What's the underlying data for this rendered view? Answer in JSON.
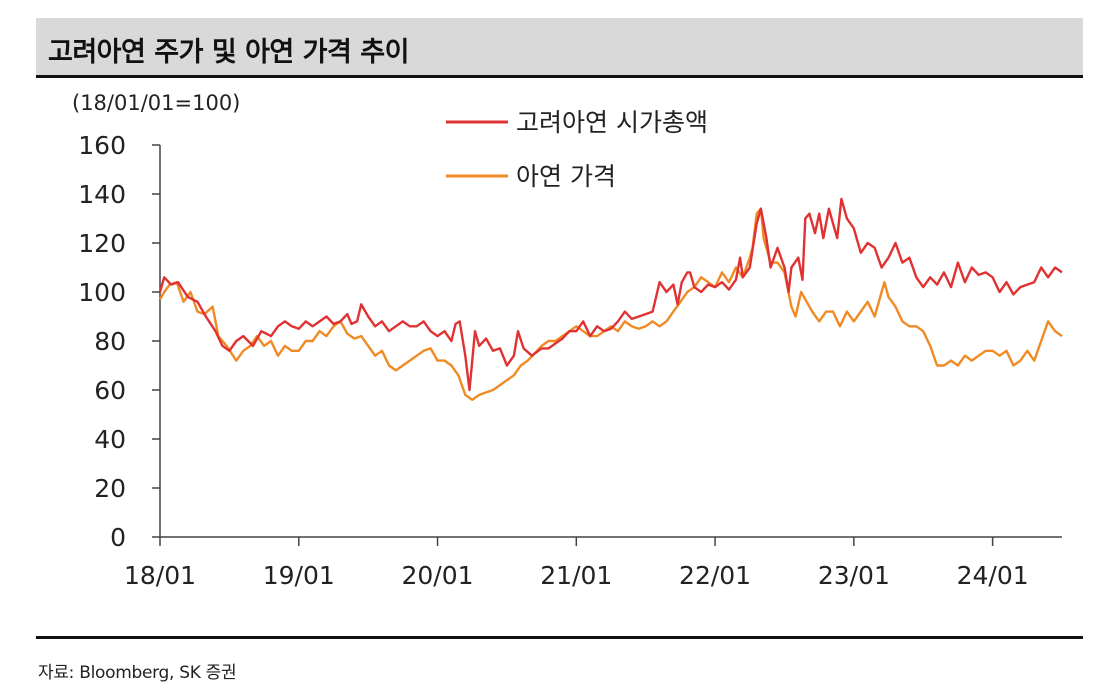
{
  "header": {
    "title": "고려아연 주가 및 아연 가격 추이"
  },
  "footer": {
    "source": "자료: Bloomberg, SK 증권"
  },
  "chart_data": {
    "type": "line",
    "unit_note": "(18/01/01=100)",
    "ylim": [
      0,
      160
    ],
    "yticks": [
      "0",
      "20",
      "40",
      "60",
      "80",
      "100",
      "120",
      "140",
      "160"
    ],
    "xlim": [
      0,
      6.5
    ],
    "xticks": [
      "18/01",
      "19/01",
      "20/01",
      "21/01",
      "22/01",
      "23/01",
      "24/01"
    ],
    "grid": false,
    "legend_position": "top-center",
    "colors": {
      "market_cap": "#e03232",
      "zinc": "#f08a24"
    },
    "series": [
      {
        "name": "고려아연 시가총액",
        "color": "#e03232",
        "points": [
          [
            0.0,
            100
          ],
          [
            0.03,
            106
          ],
          [
            0.08,
            103
          ],
          [
            0.13,
            104
          ],
          [
            0.2,
            98
          ],
          [
            0.27,
            96
          ],
          [
            0.33,
            90
          ],
          [
            0.4,
            84
          ],
          [
            0.45,
            78
          ],
          [
            0.5,
            76
          ],
          [
            0.55,
            80
          ],
          [
            0.6,
            82
          ],
          [
            0.67,
            78
          ],
          [
            0.73,
            84
          ],
          [
            0.8,
            82
          ],
          [
            0.85,
            86
          ],
          [
            0.9,
            88
          ],
          [
            0.95,
            86
          ],
          [
            1.0,
            85
          ],
          [
            1.05,
            88
          ],
          [
            1.1,
            86
          ],
          [
            1.15,
            88
          ],
          [
            1.2,
            90
          ],
          [
            1.25,
            87
          ],
          [
            1.3,
            88
          ],
          [
            1.35,
            91
          ],
          [
            1.38,
            87
          ],
          [
            1.42,
            88
          ],
          [
            1.45,
            95
          ],
          [
            1.5,
            90
          ],
          [
            1.55,
            86
          ],
          [
            1.6,
            88
          ],
          [
            1.65,
            84
          ],
          [
            1.7,
            86
          ],
          [
            1.75,
            88
          ],
          [
            1.8,
            86
          ],
          [
            1.85,
            86
          ],
          [
            1.9,
            88
          ],
          [
            1.95,
            84
          ],
          [
            2.0,
            82
          ],
          [
            2.05,
            84
          ],
          [
            2.1,
            80
          ],
          [
            2.13,
            87
          ],
          [
            2.16,
            88
          ],
          [
            2.2,
            74
          ],
          [
            2.23,
            60
          ],
          [
            2.27,
            84
          ],
          [
            2.3,
            78
          ],
          [
            2.35,
            81
          ],
          [
            2.4,
            76
          ],
          [
            2.45,
            77
          ],
          [
            2.5,
            70
          ],
          [
            2.55,
            74
          ],
          [
            2.58,
            84
          ],
          [
            2.62,
            77
          ],
          [
            2.68,
            74
          ],
          [
            2.75,
            77
          ],
          [
            2.8,
            77
          ],
          [
            2.85,
            79
          ],
          [
            2.9,
            81
          ],
          [
            2.95,
            84
          ],
          [
            3.0,
            84
          ],
          [
            3.05,
            88
          ],
          [
            3.1,
            82
          ],
          [
            3.15,
            86
          ],
          [
            3.2,
            84
          ],
          [
            3.25,
            85
          ],
          [
            3.3,
            88
          ],
          [
            3.35,
            92
          ],
          [
            3.4,
            89
          ],
          [
            3.45,
            90
          ],
          [
            3.5,
            91
          ],
          [
            3.55,
            92
          ],
          [
            3.6,
            104
          ],
          [
            3.65,
            100
          ],
          [
            3.7,
            103
          ],
          [
            3.73,
            95
          ],
          [
            3.76,
            104
          ],
          [
            3.8,
            108
          ],
          [
            3.82,
            108
          ],
          [
            3.85,
            102
          ],
          [
            3.9,
            100
          ],
          [
            3.95,
            103
          ],
          [
            4.0,
            102
          ],
          [
            4.05,
            104
          ],
          [
            4.1,
            101
          ],
          [
            4.15,
            105
          ],
          [
            4.18,
            114
          ],
          [
            4.2,
            106
          ],
          [
            4.25,
            110
          ],
          [
            4.3,
            128
          ],
          [
            4.33,
            134
          ],
          [
            4.37,
            122
          ],
          [
            4.4,
            110
          ],
          [
            4.45,
            118
          ],
          [
            4.5,
            110
          ],
          [
            4.53,
            100
          ],
          [
            4.55,
            110
          ],
          [
            4.6,
            114
          ],
          [
            4.63,
            105
          ],
          [
            4.65,
            130
          ],
          [
            4.68,
            132
          ],
          [
            4.72,
            124
          ],
          [
            4.75,
            132
          ],
          [
            4.78,
            122
          ],
          [
            4.82,
            134
          ],
          [
            4.85,
            128
          ],
          [
            4.88,
            122
          ],
          [
            4.91,
            138
          ],
          [
            4.95,
            130
          ],
          [
            5.0,
            126
          ],
          [
            5.05,
            116
          ],
          [
            5.1,
            120
          ],
          [
            5.15,
            118
          ],
          [
            5.2,
            110
          ],
          [
            5.25,
            114
          ],
          [
            5.3,
            120
          ],
          [
            5.35,
            112
          ],
          [
            5.4,
            114
          ],
          [
            5.45,
            106
          ],
          [
            5.5,
            102
          ],
          [
            5.55,
            106
          ],
          [
            5.6,
            103
          ],
          [
            5.65,
            108
          ],
          [
            5.7,
            102
          ],
          [
            5.75,
            112
          ],
          [
            5.8,
            104
          ],
          [
            5.85,
            110
          ],
          [
            5.9,
            107
          ],
          [
            5.95,
            108
          ],
          [
            6.0,
            106
          ],
          [
            6.05,
            100
          ],
          [
            6.1,
            104
          ],
          [
            6.15,
            99
          ],
          [
            6.2,
            102
          ],
          [
            6.25,
            103
          ],
          [
            6.3,
            104
          ],
          [
            6.35,
            110
          ],
          [
            6.4,
            106
          ],
          [
            6.45,
            110
          ],
          [
            6.5,
            108
          ]
        ]
      },
      {
        "name": "아연 가격",
        "color": "#f08a24",
        "points": [
          [
            0.0,
            97
          ],
          [
            0.03,
            100
          ],
          [
            0.07,
            103
          ],
          [
            0.12,
            104
          ],
          [
            0.17,
            96
          ],
          [
            0.22,
            100
          ],
          [
            0.27,
            92
          ],
          [
            0.32,
            91
          ],
          [
            0.38,
            94
          ],
          [
            0.42,
            82
          ],
          [
            0.48,
            78
          ],
          [
            0.55,
            72
          ],
          [
            0.6,
            76
          ],
          [
            0.65,
            78
          ],
          [
            0.7,
            82
          ],
          [
            0.75,
            78
          ],
          [
            0.8,
            80
          ],
          [
            0.85,
            74
          ],
          [
            0.9,
            78
          ],
          [
            0.95,
            76
          ],
          [
            1.0,
            76
          ],
          [
            1.05,
            80
          ],
          [
            1.1,
            80
          ],
          [
            1.15,
            84
          ],
          [
            1.2,
            82
          ],
          [
            1.25,
            86
          ],
          [
            1.3,
            88
          ],
          [
            1.35,
            83
          ],
          [
            1.4,
            81
          ],
          [
            1.45,
            82
          ],
          [
            1.5,
            78
          ],
          [
            1.55,
            74
          ],
          [
            1.6,
            76
          ],
          [
            1.65,
            70
          ],
          [
            1.7,
            68
          ],
          [
            1.75,
            70
          ],
          [
            1.8,
            72
          ],
          [
            1.85,
            74
          ],
          [
            1.9,
            76
          ],
          [
            1.95,
            77
          ],
          [
            2.0,
            72
          ],
          [
            2.05,
            72
          ],
          [
            2.1,
            70
          ],
          [
            2.15,
            66
          ],
          [
            2.2,
            58
          ],
          [
            2.25,
            56
          ],
          [
            2.3,
            58
          ],
          [
            2.35,
            59
          ],
          [
            2.4,
            60
          ],
          [
            2.45,
            62
          ],
          [
            2.5,
            64
          ],
          [
            2.55,
            66
          ],
          [
            2.6,
            70
          ],
          [
            2.65,
            72
          ],
          [
            2.7,
            75
          ],
          [
            2.75,
            78
          ],
          [
            2.8,
            80
          ],
          [
            2.85,
            80
          ],
          [
            2.9,
            82
          ],
          [
            2.95,
            84
          ],
          [
            3.0,
            86
          ],
          [
            3.05,
            84
          ],
          [
            3.1,
            82
          ],
          [
            3.15,
            82
          ],
          [
            3.2,
            84
          ],
          [
            3.25,
            86
          ],
          [
            3.3,
            84
          ],
          [
            3.35,
            88
          ],
          [
            3.4,
            86
          ],
          [
            3.45,
            85
          ],
          [
            3.5,
            86
          ],
          [
            3.55,
            88
          ],
          [
            3.6,
            86
          ],
          [
            3.65,
            88
          ],
          [
            3.7,
            92
          ],
          [
            3.75,
            96
          ],
          [
            3.8,
            100
          ],
          [
            3.85,
            102
          ],
          [
            3.9,
            106
          ],
          [
            3.95,
            104
          ],
          [
            4.0,
            102
          ],
          [
            4.05,
            108
          ],
          [
            4.1,
            104
          ],
          [
            4.15,
            110
          ],
          [
            4.2,
            106
          ],
          [
            4.25,
            114
          ],
          [
            4.27,
            118
          ],
          [
            4.3,
            132
          ],
          [
            4.33,
            134
          ],
          [
            4.35,
            122
          ],
          [
            4.4,
            112
          ],
          [
            4.45,
            112
          ],
          [
            4.5,
            108
          ],
          [
            4.55,
            94
          ],
          [
            4.58,
            90
          ],
          [
            4.62,
            100
          ],
          [
            4.66,
            96
          ],
          [
            4.7,
            92
          ],
          [
            4.75,
            88
          ],
          [
            4.8,
            92
          ],
          [
            4.85,
            92
          ],
          [
            4.9,
            86
          ],
          [
            4.95,
            92
          ],
          [
            5.0,
            88
          ],
          [
            5.05,
            92
          ],
          [
            5.1,
            96
          ],
          [
            5.15,
            90
          ],
          [
            5.2,
            100
          ],
          [
            5.22,
            104
          ],
          [
            5.25,
            98
          ],
          [
            5.3,
            94
          ],
          [
            5.35,
            88
          ],
          [
            5.4,
            86
          ],
          [
            5.45,
            86
          ],
          [
            5.5,
            84
          ],
          [
            5.55,
            78
          ],
          [
            5.6,
            70
          ],
          [
            5.65,
            70
          ],
          [
            5.7,
            72
          ],
          [
            5.75,
            70
          ],
          [
            5.8,
            74
          ],
          [
            5.85,
            72
          ],
          [
            5.9,
            74
          ],
          [
            5.95,
            76
          ],
          [
            6.0,
            76
          ],
          [
            6.05,
            74
          ],
          [
            6.1,
            76
          ],
          [
            6.15,
            70
          ],
          [
            6.2,
            72
          ],
          [
            6.25,
            76
          ],
          [
            6.3,
            72
          ],
          [
            6.35,
            80
          ],
          [
            6.4,
            88
          ],
          [
            6.45,
            84
          ],
          [
            6.5,
            82
          ]
        ]
      }
    ]
  }
}
